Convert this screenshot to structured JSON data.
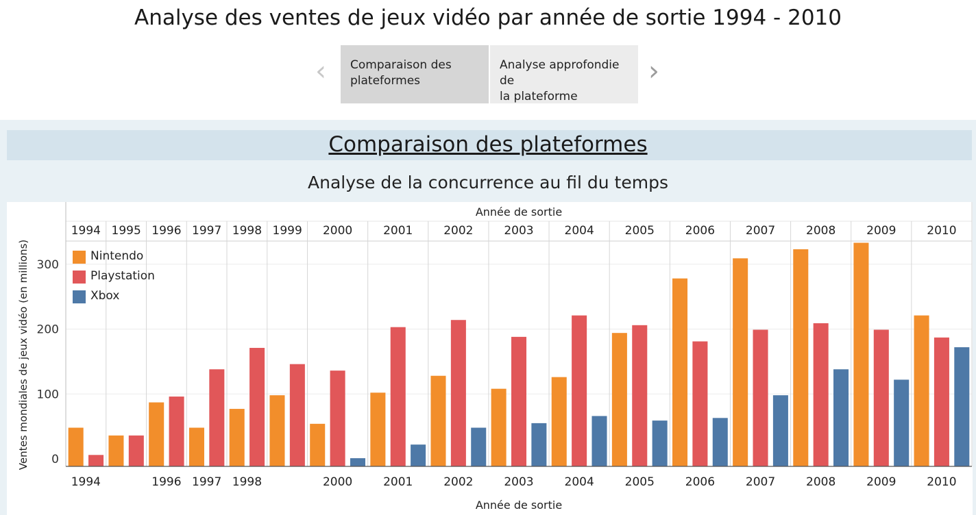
{
  "header": {
    "title": "Analyse des ventes de jeux vidéo par année de sortie 1994 - 2010",
    "tabs": [
      {
        "label_line1": "Comparaison des",
        "label_line2": "plateformes"
      },
      {
        "label_line1": "Analyse approfondie de",
        "label_line2": "la plateforme"
      }
    ],
    "prev_icon": "chevron-left-icon",
    "next_icon": "chevron-right-icon"
  },
  "section_title": "Comparaison des plateformes",
  "colors": {
    "Nintendo": "#f28e2b",
    "Playstation": "#e15759",
    "Xbox": "#4e79a7"
  },
  "chart_data": {
    "type": "bar",
    "title": "Analyse de la concurrence au fil du temps",
    "xlabel": "Année de sortie",
    "ylabel": "Ventes mondiales de jeux vidéo (en millions)",
    "ylim": [
      0,
      350
    ],
    "yticks": [
      0,
      100,
      200,
      300
    ],
    "grid": true,
    "legend_position": "top-left",
    "top_labels": [
      "1994",
      "1995",
      "1996",
      "1997",
      "1998",
      "1999",
      "2000",
      "2001",
      "2002",
      "2003",
      "2004",
      "2005",
      "2006",
      "2007",
      "2008",
      "2009",
      "2010"
    ],
    "bottom_labels": [
      "1994",
      "1996",
      "1997",
      "1998",
      "2000",
      "2001",
      "2002",
      "2003",
      "2004",
      "2005",
      "2006",
      "2007",
      "2008",
      "2009",
      "2010"
    ],
    "series_order": [
      "Nintendo",
      "Playstation",
      "Xbox"
    ],
    "years": [
      {
        "year": "1994",
        "values": {
          "Nintendo": 48,
          "Playstation": 6
        }
      },
      {
        "year": "1995",
        "values": {
          "Nintendo": 36,
          "Playstation": 36
        }
      },
      {
        "year": "1996",
        "values": {
          "Nintendo": 87,
          "Playstation": 96
        }
      },
      {
        "year": "1997",
        "values": {
          "Nintendo": 48,
          "Playstation": 138
        }
      },
      {
        "year": "1998",
        "values": {
          "Nintendo": 77,
          "Playstation": 171
        }
      },
      {
        "year": "1999",
        "values": {
          "Nintendo": 98,
          "Playstation": 146
        }
      },
      {
        "year": "2000",
        "values": {
          "Nintendo": 54,
          "Playstation": 136,
          "Xbox": 1
        }
      },
      {
        "year": "2001",
        "values": {
          "Nintendo": 102,
          "Playstation": 203,
          "Xbox": 22
        }
      },
      {
        "year": "2002",
        "values": {
          "Nintendo": 128,
          "Playstation": 214,
          "Xbox": 48
        }
      },
      {
        "year": "2003",
        "values": {
          "Nintendo": 108,
          "Playstation": 188,
          "Xbox": 55
        }
      },
      {
        "year": "2004",
        "values": {
          "Nintendo": 126,
          "Playstation": 221,
          "Xbox": 66
        }
      },
      {
        "year": "2005",
        "values": {
          "Nintendo": 194,
          "Playstation": 206,
          "Xbox": 59
        }
      },
      {
        "year": "2006",
        "values": {
          "Nintendo": 278,
          "Playstation": 181,
          "Xbox": 63
        }
      },
      {
        "year": "2007",
        "values": {
          "Nintendo": 309,
          "Playstation": 199,
          "Xbox": 98
        }
      },
      {
        "year": "2008",
        "values": {
          "Nintendo": 323,
          "Playstation": 209,
          "Xbox": 138
        }
      },
      {
        "year": "2009",
        "values": {
          "Nintendo": 333,
          "Playstation": 199,
          "Xbox": 122
        }
      },
      {
        "year": "2010",
        "values": {
          "Nintendo": 221,
          "Playstation": 187,
          "Xbox": 172
        }
      }
    ]
  }
}
